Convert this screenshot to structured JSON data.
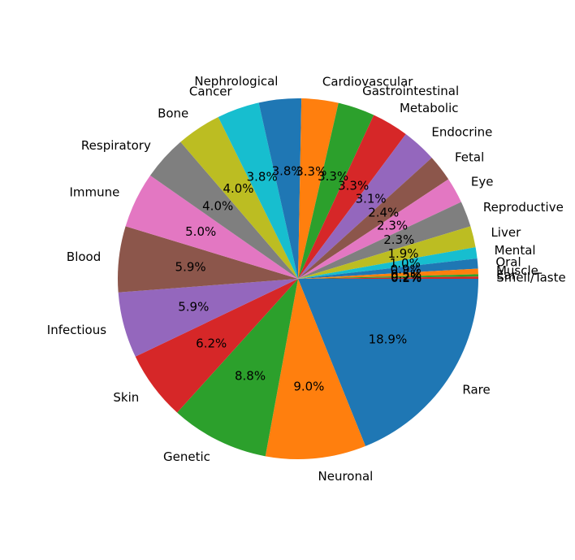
{
  "chart_data": {
    "type": "pie",
    "categories": [
      "Rare",
      "Neuronal",
      "Genetic",
      "Skin",
      "Infectious",
      "Blood",
      "Immune",
      "Respiratory",
      "Bone",
      "Cancer",
      "Nephrological",
      "Cardiovascular",
      "Gastrointestinal",
      "Metabolic",
      "Endocrine",
      "Fetal",
      "Eye",
      "Reproductive",
      "Liver",
      "Mental",
      "Oral",
      "Muscle",
      "Ear",
      "Smell/Taste"
    ],
    "values": [
      18.9,
      9.0,
      8.8,
      6.2,
      5.9,
      5.9,
      5.0,
      4.0,
      4.0,
      3.8,
      3.8,
      3.3,
      3.3,
      3.3,
      3.1,
      2.4,
      2.3,
      2.3,
      1.9,
      1.0,
      0.9,
      0.5,
      0.2,
      0.2
    ],
    "value_labels": [
      "18.9%",
      "9.0%",
      "8.8%",
      "6.2%",
      "5.9%",
      "5.9%",
      "5.0%",
      "4.0%",
      "4.0%",
      "3.8%",
      "3.8%",
      "3.3%",
      "3.3%",
      "3.3%",
      "3.1%",
      "2.4%",
      "2.3%",
      "2.3%",
      "1.9%",
      "1.0%",
      "0.9%",
      "0.5%",
      "0.2%",
      "0.2%"
    ],
    "colors": [
      "#1f77b4",
      "#ff7f0e",
      "#2ca02c",
      "#d62728",
      "#9467bd",
      "#8c564b",
      "#e377c2",
      "#7f7f7f",
      "#bcbd22",
      "#17becf",
      "#1f77b4",
      "#ff7f0e",
      "#2ca02c",
      "#d62728",
      "#9467bd",
      "#8c564b",
      "#e377c2",
      "#7f7f7f",
      "#bcbd22",
      "#17becf",
      "#1f77b4",
      "#ff7f0e",
      "#2ca02c",
      "#d62728"
    ],
    "direction": "clockwise",
    "start": "right",
    "title": ""
  }
}
